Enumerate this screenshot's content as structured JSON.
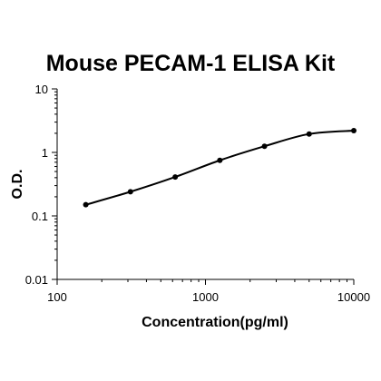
{
  "chart_data": {
    "type": "line",
    "title": "Mouse PECAM-1 ELISA Kit",
    "xlabel": "Concentration(pg/ml)",
    "ylabel": "O.D.",
    "xscale": "log",
    "yscale": "log",
    "xlim": [
      100,
      10000
    ],
    "ylim": [
      0.01,
      10
    ],
    "xticks": [
      "100",
      "1000",
      "10000"
    ],
    "yticks": [
      "0.01",
      "0.1",
      "1",
      "10"
    ],
    "grid": false,
    "legend": "none",
    "series": [
      {
        "x": [
          156,
          312,
          625,
          1250,
          2500,
          5000,
          10000
        ],
        "y": [
          0.15,
          0.24,
          0.41,
          0.75,
          1.25,
          1.95,
          2.2
        ]
      }
    ],
    "colors": {
      "line": "#000000",
      "marker": "#000000",
      "axis": "#000000"
    }
  }
}
